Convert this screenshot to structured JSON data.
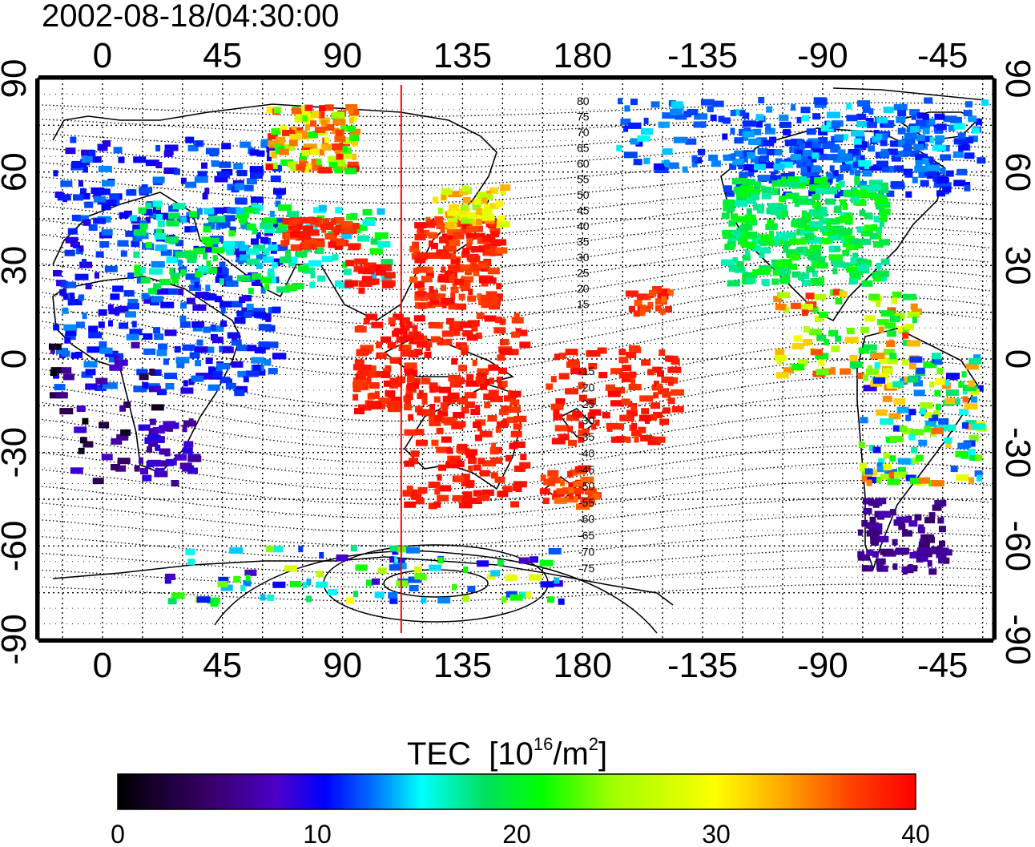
{
  "title": "2002-08-18/04:30:00",
  "map": {
    "lon_ticks": [
      "0",
      "45",
      "90",
      "135",
      "180",
      "-135",
      "-90",
      "-45"
    ],
    "lat_ticks": [
      "90",
      "60",
      "30",
      "0",
      "-30",
      "-60",
      "-90"
    ],
    "contour_labels_north": [
      "80",
      "75",
      "70",
      "65",
      "60",
      "55",
      "50",
      "45",
      "40",
      "35",
      "30",
      "25",
      "20",
      "15"
    ],
    "contour_labels_south": [
      "-15",
      "-20",
      "-25",
      "-30",
      "-35",
      "-40",
      "-45",
      "-50",
      "-55",
      "-60",
      "-65",
      "-70",
      "-75"
    ],
    "marker_longitude": 112,
    "lon_range": [
      -24,
      334
    ],
    "lat_range": [
      -90,
      90
    ],
    "colors": {
      "marker": "#ff0000",
      "frame": "#000000"
    }
  },
  "colorbar": {
    "label_text": "TEC",
    "label_unit_base": "[10",
    "label_unit_exp": "16",
    "label_unit_mid": "/m",
    "label_unit_exp2": "2",
    "label_unit_end": "]",
    "ticks": [
      "0",
      "10",
      "20",
      "30",
      "40"
    ],
    "range": [
      0,
      40
    ],
    "colors": [
      "#000000",
      "#3a006e",
      "#4a00c8",
      "#0000ff",
      "#0070ff",
      "#00ffff",
      "#00e060",
      "#00ff00",
      "#a0ff00",
      "#ffff00",
      "#ffa000",
      "#ff4000",
      "#ff0000"
    ]
  }
}
